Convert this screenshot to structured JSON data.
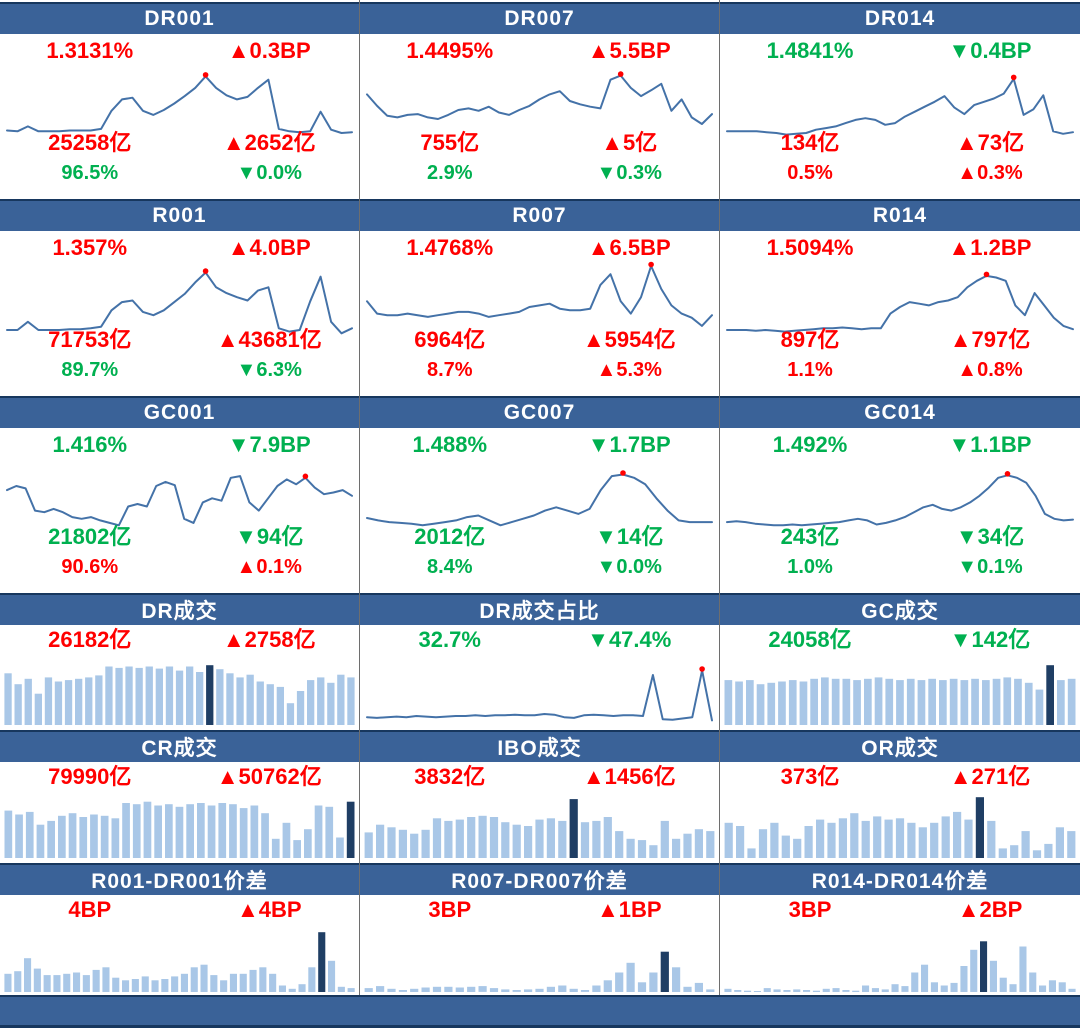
{
  "colors": {
    "up_red": "#FF0000",
    "down_green": "#00B050",
    "header_bg": "#3A6298",
    "header_border": "#17375E",
    "line": "#4472A8",
    "dot": "#FF0000",
    "bar_light": "#A9C7E7",
    "bar_dark": "#1F3E64"
  },
  "footer": {
    "label": ""
  },
  "chart_data": [
    {
      "id": "DR001",
      "title": "DR001",
      "type": "line",
      "stats": [
        {
          "name": "rate",
          "text": "1.3131%",
          "color": "r"
        },
        {
          "name": "rate-change",
          "text": "▲0.3BP",
          "color": "r"
        },
        {
          "name": "volume",
          "text": "25258亿",
          "color": "r"
        },
        {
          "name": "volume-change",
          "text": "▲2652亿",
          "color": "r"
        },
        {
          "name": "share",
          "text": "96.5%",
          "color": "g"
        },
        {
          "name": "share-change",
          "text": "▼0.0%",
          "color": "g"
        }
      ],
      "values": [
        14,
        13,
        19,
        13,
        13,
        13,
        14,
        14,
        14,
        16,
        38,
        52,
        54,
        38,
        33,
        39,
        47,
        56,
        66,
        80,
        66,
        57,
        52,
        55,
        66,
        76,
        16,
        13,
        12,
        13,
        37,
        15,
        11,
        12
      ],
      "dot": 19
    },
    {
      "id": "DR007",
      "title": "DR007",
      "type": "line",
      "stats": [
        {
          "name": "rate",
          "text": "1.4495%",
          "color": "r"
        },
        {
          "name": "rate-change",
          "text": "▲5.5BP",
          "color": "r"
        },
        {
          "name": "volume",
          "text": "755亿",
          "color": "r"
        },
        {
          "name": "volume-change",
          "text": "▲5亿",
          "color": "r"
        },
        {
          "name": "share",
          "text": "2.9%",
          "color": "g"
        },
        {
          "name": "share-change",
          "text": "▼0.3%",
          "color": "g"
        }
      ],
      "values": [
        58,
        44,
        32,
        30,
        33,
        34,
        30,
        28,
        33,
        39,
        41,
        38,
        43,
        36,
        33,
        39,
        44,
        52,
        58,
        62,
        50,
        46,
        43,
        41,
        76,
        81,
        66,
        56,
        63,
        71,
        38,
        52,
        30,
        22,
        34
      ],
      "dot": 25
    },
    {
      "id": "DR014",
      "title": "DR014",
      "type": "line",
      "stats": [
        {
          "name": "rate",
          "text": "1.4841%",
          "color": "g"
        },
        {
          "name": "rate-change",
          "text": "▼0.4BP",
          "color": "g"
        },
        {
          "name": "volume",
          "text": "134亿",
          "color": "r"
        },
        {
          "name": "volume-change",
          "text": "▲73亿",
          "color": "r"
        },
        {
          "name": "share",
          "text": "0.5%",
          "color": "r"
        },
        {
          "name": "share-change",
          "text": "▲0.3%",
          "color": "r"
        }
      ],
      "values": [
        13,
        13,
        13,
        13,
        12,
        11,
        9,
        10,
        11,
        15,
        17,
        19,
        23,
        27,
        29,
        27,
        21,
        23,
        31,
        37,
        43,
        49,
        56,
        42,
        34,
        45,
        49,
        53,
        59,
        77,
        33,
        40,
        57,
        13,
        10,
        12
      ],
      "dot": 29
    },
    {
      "id": "R001",
      "title": "R001",
      "type": "line",
      "stats": [
        {
          "name": "rate",
          "text": "1.357%",
          "color": "r"
        },
        {
          "name": "rate-change",
          "text": "▲4.0BP",
          "color": "r"
        },
        {
          "name": "volume",
          "text": "71753亿",
          "color": "r"
        },
        {
          "name": "volume-change",
          "text": "▲43681亿",
          "color": "r"
        },
        {
          "name": "share",
          "text": "89.7%",
          "color": "g"
        },
        {
          "name": "share-change",
          "text": "▼6.3%",
          "color": "g"
        }
      ],
      "values": [
        11,
        11,
        21,
        11,
        11,
        11,
        12,
        12,
        13,
        15,
        35,
        45,
        47,
        33,
        29,
        35,
        45,
        55,
        69,
        81,
        63,
        56,
        51,
        47,
        59,
        63,
        13,
        9,
        11,
        46,
        76,
        21,
        7,
        13
      ],
      "dot": 19
    },
    {
      "id": "R007",
      "title": "R007",
      "type": "line",
      "stats": [
        {
          "name": "rate",
          "text": "1.4768%",
          "color": "r"
        },
        {
          "name": "rate-change",
          "text": "▲6.5BP",
          "color": "r"
        },
        {
          "name": "volume",
          "text": "6964亿",
          "color": "r"
        },
        {
          "name": "volume-change",
          "text": "▲5954亿",
          "color": "r"
        },
        {
          "name": "share",
          "text": "8.7%",
          "color": "r"
        },
        {
          "name": "share-change",
          "text": "▲5.3%",
          "color": "r"
        }
      ],
      "values": [
        46,
        31,
        29,
        29,
        31,
        29,
        27,
        29,
        31,
        33,
        33,
        31,
        27,
        29,
        31,
        33,
        39,
        41,
        43,
        37,
        35,
        35,
        37,
        66,
        79,
        46,
        31,
        51,
        89,
        61,
        41,
        31,
        26,
        16,
        29
      ],
      "dot": 28
    },
    {
      "id": "R014",
      "title": "R014",
      "type": "line",
      "stats": [
        {
          "name": "rate",
          "text": "1.5094%",
          "color": "r"
        },
        {
          "name": "rate-change",
          "text": "▲1.2BP",
          "color": "r"
        },
        {
          "name": "volume",
          "text": "897亿",
          "color": "r"
        },
        {
          "name": "volume-change",
          "text": "▲797亿",
          "color": "r"
        },
        {
          "name": "share",
          "text": "1.1%",
          "color": "r"
        },
        {
          "name": "share-change",
          "text": "▲0.8%",
          "color": "r"
        }
      ],
      "values": [
        11,
        11,
        11,
        10,
        11,
        10,
        9,
        10,
        11,
        12,
        13,
        13,
        14,
        13,
        12,
        13,
        13,
        31,
        39,
        45,
        43,
        41,
        45,
        47,
        51,
        63,
        71,
        77,
        75,
        71,
        41,
        29,
        56,
        41,
        26,
        16,
        12
      ],
      "dot": 27
    },
    {
      "id": "GC001",
      "title": "GC001",
      "type": "line",
      "stats": [
        {
          "name": "rate",
          "text": "1.416%",
          "color": "g"
        },
        {
          "name": "rate-change",
          "text": "▼7.9BP",
          "color": "g"
        },
        {
          "name": "volume",
          "text": "21802亿",
          "color": "g"
        },
        {
          "name": "volume-change",
          "text": "▼94亿",
          "color": "g"
        },
        {
          "name": "share",
          "text": "90.6%",
          "color": "r"
        },
        {
          "name": "share-change",
          "text": "▲0.1%",
          "color": "r"
        }
      ],
      "values": [
        56,
        61,
        58,
        31,
        29,
        33,
        29,
        23,
        21,
        23,
        19,
        16,
        13,
        36,
        39,
        36,
        61,
        66,
        62,
        21,
        16,
        41,
        46,
        43,
        71,
        73,
        41,
        31,
        46,
        61,
        69,
        63,
        71,
        59,
        51,
        53,
        56,
        49
      ],
      "dot": 32
    },
    {
      "id": "GC007",
      "title": "GC007",
      "type": "line",
      "stats": [
        {
          "name": "rate",
          "text": "1.488%",
          "color": "g"
        },
        {
          "name": "rate-change",
          "text": "▼1.7BP",
          "color": "g"
        },
        {
          "name": "volume",
          "text": "2012亿",
          "color": "g"
        },
        {
          "name": "volume-change",
          "text": "▼14亿",
          "color": "g"
        },
        {
          "name": "share",
          "text": "8.4%",
          "color": "g"
        },
        {
          "name": "share-change",
          "text": "▼0.0%",
          "color": "g"
        }
      ],
      "values": [
        22,
        19,
        17,
        16,
        15,
        13,
        15,
        17,
        19,
        23,
        25,
        19,
        13,
        17,
        21,
        25,
        31,
        35,
        31,
        27,
        33,
        56,
        73,
        75,
        71,
        63,
        46,
        31,
        19,
        17,
        17,
        17
      ],
      "dot": 23
    },
    {
      "id": "GC014",
      "title": "GC014",
      "type": "line",
      "stats": [
        {
          "name": "rate",
          "text": "1.492%",
          "color": "g"
        },
        {
          "name": "rate-change",
          "text": "▼1.1BP",
          "color": "g"
        },
        {
          "name": "volume",
          "text": "243亿",
          "color": "g"
        },
        {
          "name": "volume-change",
          "text": "▼34亿",
          "color": "g"
        },
        {
          "name": "share",
          "text": "1.0%",
          "color": "g"
        },
        {
          "name": "share-change",
          "text": "▼0.1%",
          "color": "g"
        }
      ],
      "values": [
        17,
        18,
        17,
        15,
        14,
        13,
        13,
        14,
        13,
        14,
        15,
        16,
        17,
        19,
        21,
        19,
        14,
        16,
        19,
        23,
        29,
        35,
        38,
        33,
        31,
        35,
        41,
        49,
        59,
        71,
        74,
        71,
        65,
        49,
        27,
        21,
        19,
        20
      ],
      "dot": 30
    },
    {
      "id": "DR-volume",
      "title": "DR成交",
      "type": "bar",
      "stats": [
        {
          "name": "volume",
          "text": "26182亿",
          "color": "r"
        },
        {
          "name": "volume-change",
          "text": "▲2758亿",
          "color": "r"
        }
      ],
      "values": [
        76,
        60,
        68,
        46,
        70,
        64,
        66,
        68,
        70,
        73,
        86,
        84,
        86,
        84,
        86,
        83,
        86,
        80,
        86,
        78,
        88,
        82,
        76,
        70,
        74,
        64,
        60,
        56,
        32,
        50,
        66,
        70,
        62,
        74,
        70
      ],
      "dark": 20
    },
    {
      "id": "DR-share",
      "title": "DR成交占比",
      "type": "line",
      "stats": [
        {
          "name": "volume",
          "text": "32.7%",
          "color": "g"
        },
        {
          "name": "volume-change",
          "text": "▼47.4%",
          "color": "g"
        }
      ],
      "values": [
        9,
        8,
        9,
        10,
        9,
        11,
        10,
        9,
        10,
        11,
        11,
        12,
        11,
        12,
        12,
        13,
        12,
        12,
        14,
        13,
        9,
        8,
        12,
        13,
        12,
        11,
        12,
        12,
        11,
        75,
        6,
        5,
        7,
        9,
        82,
        4
      ],
      "dot": 34
    },
    {
      "id": "GC-volume",
      "title": "GC成交",
      "type": "bar",
      "stats": [
        {
          "name": "volume",
          "text": "24058亿",
          "color": "g"
        },
        {
          "name": "volume-change",
          "text": "▼142亿",
          "color": "g"
        }
      ],
      "values": [
        66,
        64,
        66,
        60,
        62,
        64,
        66,
        64,
        68,
        70,
        68,
        68,
        66,
        68,
        70,
        68,
        66,
        68,
        66,
        68,
        66,
        68,
        66,
        68,
        66,
        68,
        70,
        68,
        62,
        52,
        88,
        66,
        68
      ],
      "dark": 30
    },
    {
      "id": "CR-volume",
      "title": "CR成交",
      "type": "bar",
      "stats": [
        {
          "name": "volume",
          "text": "79990亿",
          "color": "r"
        },
        {
          "name": "volume-change",
          "text": "▲50762亿",
          "color": "r"
        }
      ],
      "values": [
        74,
        68,
        72,
        52,
        58,
        66,
        70,
        64,
        68,
        66,
        62,
        86,
        84,
        88,
        82,
        84,
        80,
        84,
        86,
        82,
        86,
        84,
        78,
        82,
        70,
        30,
        55,
        28,
        45,
        82,
        80,
        32,
        88
      ],
      "dark": 32
    },
    {
      "id": "IBO-volume",
      "title": "IBO成交",
      "type": "bar",
      "stats": [
        {
          "name": "volume",
          "text": "3832亿",
          "color": "r"
        },
        {
          "name": "volume-change",
          "text": "▲1456亿",
          "color": "r"
        }
      ],
      "values": [
        40,
        52,
        48,
        44,
        38,
        44,
        62,
        58,
        60,
        64,
        66,
        64,
        56,
        52,
        50,
        60,
        62,
        58,
        92,
        56,
        58,
        64,
        42,
        30,
        28,
        20,
        58,
        30,
        38,
        45,
        42
      ],
      "dark": 18
    },
    {
      "id": "OR-volume",
      "title": "OR成交",
      "type": "bar",
      "stats": [
        {
          "name": "volume",
          "text": "373亿",
          "color": "r"
        },
        {
          "name": "volume-change",
          "text": "▲271亿",
          "color": "r"
        }
      ],
      "values": [
        55,
        50,
        15,
        45,
        55,
        35,
        30,
        50,
        60,
        55,
        62,
        70,
        58,
        65,
        60,
        62,
        55,
        48,
        55,
        65,
        72,
        60,
        95,
        58,
        15,
        20,
        42,
        12,
        22,
        48,
        42
      ],
      "dark": 22
    },
    {
      "id": "R001-DR001-spread",
      "title": "R001-DR001价差",
      "type": "bar",
      "stats": [
        {
          "name": "volume",
          "text": "4BP",
          "color": "r"
        },
        {
          "name": "volume-change",
          "text": "▲4BP",
          "color": "r"
        }
      ],
      "values": [
        28,
        32,
        52,
        36,
        26,
        26,
        28,
        30,
        26,
        34,
        38,
        22,
        18,
        20,
        24,
        18,
        20,
        24,
        28,
        38,
        42,
        26,
        18,
        28,
        28,
        34,
        38,
        28,
        10,
        5,
        12,
        38,
        92,
        48,
        8,
        6
      ],
      "dark": 32
    },
    {
      "id": "R007-DR007-spread",
      "title": "R007-DR007价差",
      "type": "bar",
      "stats": [
        {
          "name": "volume",
          "text": "3BP",
          "color": "r"
        },
        {
          "name": "volume-change",
          "text": "▲1BP",
          "color": "r"
        }
      ],
      "values": [
        6,
        9,
        5,
        3,
        5,
        7,
        8,
        8,
        7,
        8,
        9,
        6,
        4,
        3,
        4,
        5,
        8,
        10,
        5,
        3,
        10,
        18,
        30,
        45,
        15,
        30,
        62,
        38,
        8,
        14,
        4
      ],
      "dark": 26
    },
    {
      "id": "R014-DR014-spread",
      "title": "R014-DR014价差",
      "type": "bar",
      "stats": [
        {
          "name": "volume",
          "text": "3BP",
          "color": "r"
        },
        {
          "name": "volume-change",
          "text": "▲2BP",
          "color": "r"
        }
      ],
      "values": [
        5,
        3,
        2,
        1,
        6,
        4,
        3,
        4,
        3,
        2,
        5,
        6,
        3,
        2,
        10,
        6,
        4,
        12,
        9,
        30,
        42,
        15,
        10,
        14,
        40,
        65,
        78,
        48,
        22,
        12,
        70,
        30,
        10,
        18,
        15,
        5
      ],
      "dark": 26
    }
  ]
}
